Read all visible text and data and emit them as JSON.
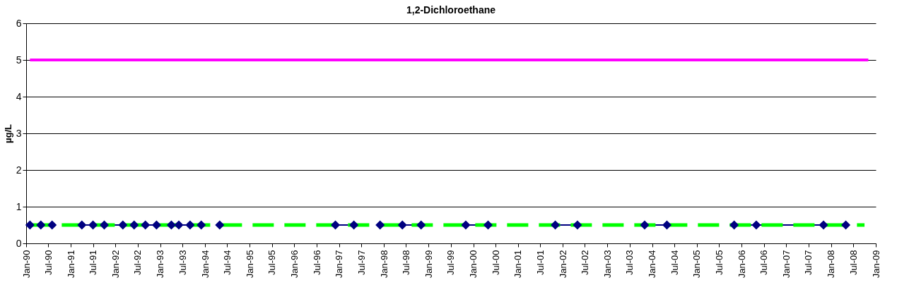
{
  "chart_data": {
    "type": "line",
    "title": "1,2-Dichloroethane",
    "ylabel": "µg/L",
    "xlim": [
      "1990-01-01",
      "2009-01-01"
    ],
    "xticks": [
      {
        "value": "1990-01-01",
        "label": "Jan-90"
      },
      {
        "value": "1990-07-01",
        "label": "Jul-90"
      },
      {
        "value": "1991-01-01",
        "label": "Jan-91"
      },
      {
        "value": "1991-07-01",
        "label": "Jul-91"
      },
      {
        "value": "1992-01-01",
        "label": "Jan-92"
      },
      {
        "value": "1992-07-01",
        "label": "Jul-92"
      },
      {
        "value": "1993-01-01",
        "label": "Jan-93"
      },
      {
        "value": "1993-07-01",
        "label": "Jul-93"
      },
      {
        "value": "1994-01-01",
        "label": "Jan-94"
      },
      {
        "value": "1994-07-01",
        "label": "Jul-94"
      },
      {
        "value": "1995-01-01",
        "label": "Jan-95"
      },
      {
        "value": "1995-07-01",
        "label": "Jul-95"
      },
      {
        "value": "1996-01-01",
        "label": "Jan-96"
      },
      {
        "value": "1996-07-01",
        "label": "Jul-96"
      },
      {
        "value": "1997-01-01",
        "label": "Jan-97"
      },
      {
        "value": "1997-07-01",
        "label": "Jul-97"
      },
      {
        "value": "1998-01-01",
        "label": "Jan-98"
      },
      {
        "value": "1998-07-01",
        "label": "Jul-98"
      },
      {
        "value": "1999-01-01",
        "label": "Jan-99"
      },
      {
        "value": "1999-07-01",
        "label": "Jul-99"
      },
      {
        "value": "2000-01-01",
        "label": "Jan-00"
      },
      {
        "value": "2000-07-01",
        "label": "Jul-00"
      },
      {
        "value": "2001-01-01",
        "label": "Jan-01"
      },
      {
        "value": "2001-07-01",
        "label": "Jul-01"
      },
      {
        "value": "2002-01-01",
        "label": "Jan-02"
      },
      {
        "value": "2002-07-01",
        "label": "Jul-02"
      },
      {
        "value": "2003-01-01",
        "label": "Jan-03"
      },
      {
        "value": "2003-07-01",
        "label": "Jul-03"
      },
      {
        "value": "2004-01-01",
        "label": "Jan-04"
      },
      {
        "value": "2004-07-01",
        "label": "Jul-04"
      },
      {
        "value": "2005-01-01",
        "label": "Jan-05"
      },
      {
        "value": "2005-07-01",
        "label": "Jul-05"
      },
      {
        "value": "2006-01-01",
        "label": "Jan-06"
      },
      {
        "value": "2006-07-01",
        "label": "Jul-06"
      },
      {
        "value": "2007-01-01",
        "label": "Jan-07"
      },
      {
        "value": "2007-07-01",
        "label": "Jul-07"
      },
      {
        "value": "2008-01-01",
        "label": "Jan-08"
      },
      {
        "value": "2008-07-01",
        "label": "Jul-08"
      },
      {
        "value": "2009-01-01",
        "label": "Jan-09"
      }
    ],
    "ylim": [
      0,
      6
    ],
    "yticks": [
      0,
      1,
      2,
      3,
      4,
      5,
      6
    ],
    "grid": "y",
    "series": [
      {
        "color": "#000080",
        "marker": "diamond",
        "line_style": "solid",
        "x": [
          "1990-02",
          "1990-05",
          "1990-08",
          "1990-12",
          "1991-04",
          "1991-07",
          "1991-10",
          "1992-03",
          "1992-06",
          "1992-09",
          "1992-12",
          "1993-04",
          "1993-06",
          "1993-09",
          "1993-12",
          "1994-03",
          "1994-05",
          "1995-06",
          "1996-12",
          "1997-05",
          "1997-08",
          "1997-12",
          "1998-06",
          "1998-11",
          "1999-05",
          "1999-11",
          "2000-05",
          "2001-01",
          "2001-11",
          "2002-05",
          "2003-01",
          "2003-11",
          "2004-05",
          "2005-02",
          "2005-11",
          "2006-05",
          "2007-11",
          "2008-05"
        ],
        "values": [
          0.5,
          0.5,
          0.5,
          null,
          0.5,
          0.5,
          0.5,
          0.5,
          0.5,
          0.5,
          0.5,
          0.5,
          0.5,
          0.5,
          0.5,
          null,
          0.5,
          null,
          0.5,
          0.5,
          null,
          0.5,
          0.5,
          0.5,
          null,
          0.5,
          0.5,
          null,
          0.5,
          0.5,
          null,
          0.5,
          0.5,
          null,
          0.5,
          0.5,
          0.5,
          0.5
        ]
      },
      {
        "color": "#00ff00",
        "marker": "none",
        "line_style": "dashed",
        "x": [
          "1990-02",
          "2008-10"
        ],
        "values": [
          0.5,
          0.5
        ]
      },
      {
        "color": "#ff00ff",
        "marker": "none",
        "line_style": "solid",
        "x": [
          "1990-02",
          "2008-11"
        ],
        "values": [
          5,
          5
        ]
      }
    ]
  }
}
